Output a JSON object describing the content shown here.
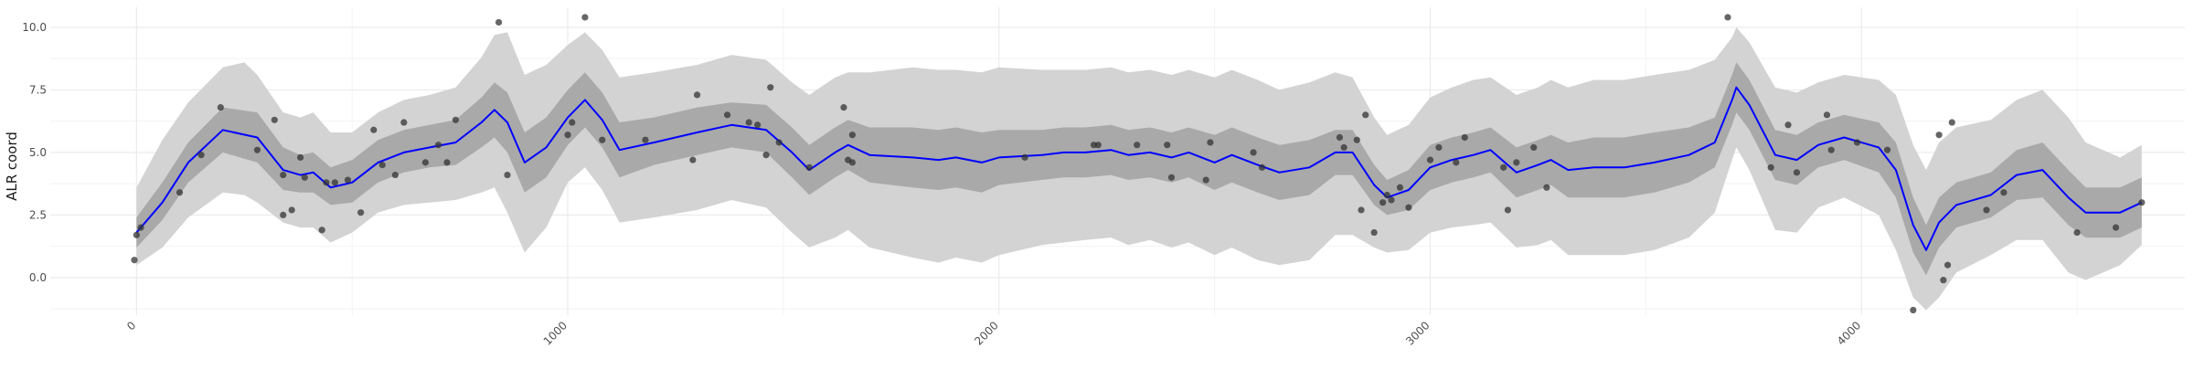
{
  "chart_data": {
    "type": "line",
    "title": "",
    "xlabel": "",
    "ylabel": "ALR coord",
    "xlim": [
      -200,
      4750
    ],
    "ylim": [
      -1.5,
      10.8
    ],
    "grid": true,
    "xticks": [
      0,
      1000,
      2000,
      3000,
      4000
    ],
    "yticks": [
      0.0,
      2.5,
      5.0,
      7.5,
      10.0
    ],
    "xtick_labels": [
      "0",
      "1000",
      "2000",
      "3000",
      "4000"
    ],
    "ytick_labels": [
      "0.0",
      "2.5",
      "5.0",
      "7.5",
      "10.0"
    ],
    "colors": {
      "mean_line": "#0000ff",
      "inner_band": "#a9a9a9",
      "outer_band": "#d3d3d3",
      "points": "#333333",
      "grid": "#ebebeb"
    },
    "mean": [
      [
        0,
        1.8
      ],
      [
        60,
        3.0
      ],
      [
        120,
        4.6
      ],
      [
        200,
        5.9
      ],
      [
        280,
        5.6
      ],
      [
        340,
        4.3
      ],
      [
        380,
        4.1
      ],
      [
        410,
        4.2
      ],
      [
        450,
        3.6
      ],
      [
        500,
        3.8
      ],
      [
        560,
        4.6
      ],
      [
        620,
        5.0
      ],
      [
        680,
        5.2
      ],
      [
        740,
        5.4
      ],
      [
        800,
        6.2
      ],
      [
        830,
        6.7
      ],
      [
        860,
        6.2
      ],
      [
        900,
        4.6
      ],
      [
        950,
        5.2
      ],
      [
        1000,
        6.4
      ],
      [
        1040,
        7.1
      ],
      [
        1080,
        6.3
      ],
      [
        1120,
        5.1
      ],
      [
        1200,
        5.4
      ],
      [
        1300,
        5.8
      ],
      [
        1380,
        6.1
      ],
      [
        1460,
        5.9
      ],
      [
        1520,
        5.0
      ],
      [
        1560,
        4.3
      ],
      [
        1620,
        5.0
      ],
      [
        1650,
        5.3
      ],
      [
        1700,
        4.9
      ],
      [
        1800,
        4.8
      ],
      [
        1860,
        4.7
      ],
      [
        1900,
        4.8
      ],
      [
        1960,
        4.6
      ],
      [
        2000,
        4.8
      ],
      [
        2100,
        4.9
      ],
      [
        2150,
        5.0
      ],
      [
        2200,
        5.0
      ],
      [
        2260,
        5.1
      ],
      [
        2300,
        4.9
      ],
      [
        2350,
        5.0
      ],
      [
        2400,
        4.8
      ],
      [
        2440,
        5.0
      ],
      [
        2500,
        4.6
      ],
      [
        2540,
        4.9
      ],
      [
        2600,
        4.5
      ],
      [
        2650,
        4.2
      ],
      [
        2720,
        4.4
      ],
      [
        2780,
        5.0
      ],
      [
        2820,
        5.0
      ],
      [
        2870,
        3.7
      ],
      [
        2900,
        3.2
      ],
      [
        2950,
        3.5
      ],
      [
        3000,
        4.4
      ],
      [
        3050,
        4.7
      ],
      [
        3100,
        4.9
      ],
      [
        3140,
        5.1
      ],
      [
        3200,
        4.2
      ],
      [
        3250,
        4.5
      ],
      [
        3280,
        4.7
      ],
      [
        3320,
        4.3
      ],
      [
        3380,
        4.4
      ],
      [
        3450,
        4.4
      ],
      [
        3520,
        4.6
      ],
      [
        3600,
        4.9
      ],
      [
        3660,
        5.4
      ],
      [
        3700,
        7.1
      ],
      [
        3710,
        7.6
      ],
      [
        3740,
        6.9
      ],
      [
        3800,
        4.9
      ],
      [
        3850,
        4.7
      ],
      [
        3900,
        5.3
      ],
      [
        3960,
        5.6
      ],
      [
        4040,
        5.2
      ],
      [
        4080,
        4.3
      ],
      [
        4120,
        2.1
      ],
      [
        4150,
        1.1
      ],
      [
        4180,
        2.2
      ],
      [
        4220,
        2.9
      ],
      [
        4300,
        3.3
      ],
      [
        4360,
        4.1
      ],
      [
        4420,
        4.3
      ],
      [
        4480,
        3.2
      ],
      [
        4520,
        2.6
      ],
      [
        4600,
        2.6
      ],
      [
        4650,
        3.0
      ]
    ],
    "inner_band": [
      [
        0,
        1.2,
        2.4
      ],
      [
        60,
        2.3,
        3.8
      ],
      [
        120,
        3.8,
        5.4
      ],
      [
        200,
        5.0,
        6.8
      ],
      [
        280,
        4.6,
        6.6
      ],
      [
        340,
        3.5,
        5.2
      ],
      [
        380,
        3.4,
        4.9
      ],
      [
        410,
        3.4,
        5.0
      ],
      [
        450,
        2.9,
        4.4
      ],
      [
        500,
        3.0,
        4.7
      ],
      [
        560,
        3.8,
        5.5
      ],
      [
        620,
        4.2,
        5.9
      ],
      [
        680,
        4.4,
        6.1
      ],
      [
        740,
        4.5,
        6.3
      ],
      [
        800,
        5.2,
        7.2
      ],
      [
        830,
        5.6,
        7.8
      ],
      [
        860,
        5.0,
        7.4
      ],
      [
        900,
        3.4,
        5.8
      ],
      [
        950,
        4.0,
        6.4
      ],
      [
        1000,
        5.3,
        7.5
      ],
      [
        1040,
        6.0,
        8.2
      ],
      [
        1080,
        5.2,
        7.4
      ],
      [
        1120,
        4.0,
        6.2
      ],
      [
        1200,
        4.5,
        6.4
      ],
      [
        1300,
        4.9,
        6.8
      ],
      [
        1380,
        5.2,
        7.0
      ],
      [
        1460,
        5.0,
        6.9
      ],
      [
        1520,
        4.0,
        6.0
      ],
      [
        1560,
        3.3,
        5.3
      ],
      [
        1620,
        4.0,
        6.0
      ],
      [
        1650,
        4.3,
        6.3
      ],
      [
        1700,
        3.8,
        6.0
      ],
      [
        1800,
        3.6,
        6.0
      ],
      [
        1860,
        3.5,
        5.9
      ],
      [
        1900,
        3.6,
        6.0
      ],
      [
        1960,
        3.4,
        5.8
      ],
      [
        2000,
        3.7,
        5.9
      ],
      [
        2100,
        3.9,
        5.9
      ],
      [
        2150,
        4.0,
        6.0
      ],
      [
        2200,
        4.0,
        6.0
      ],
      [
        2260,
        4.1,
        6.1
      ],
      [
        2300,
        3.9,
        5.9
      ],
      [
        2350,
        4.0,
        6.0
      ],
      [
        2400,
        3.8,
        5.8
      ],
      [
        2440,
        4.0,
        6.0
      ],
      [
        2500,
        3.5,
        5.7
      ],
      [
        2540,
        3.8,
        6.0
      ],
      [
        2600,
        3.4,
        5.6
      ],
      [
        2650,
        3.1,
        5.3
      ],
      [
        2720,
        3.3,
        5.5
      ],
      [
        2780,
        4.1,
        5.9
      ],
      [
        2820,
        4.1,
        5.9
      ],
      [
        2870,
        2.9,
        4.5
      ],
      [
        2900,
        2.5,
        3.9
      ],
      [
        2950,
        2.7,
        4.3
      ],
      [
        3000,
        3.5,
        5.3
      ],
      [
        3050,
        3.8,
        5.6
      ],
      [
        3100,
        4.0,
        5.8
      ],
      [
        3140,
        4.2,
        6.0
      ],
      [
        3200,
        3.2,
        5.2
      ],
      [
        3250,
        3.5,
        5.5
      ],
      [
        3280,
        3.7,
        5.7
      ],
      [
        3320,
        3.2,
        5.4
      ],
      [
        3380,
        3.2,
        5.6
      ],
      [
        3450,
        3.2,
        5.6
      ],
      [
        3520,
        3.4,
        5.8
      ],
      [
        3600,
        3.8,
        6.0
      ],
      [
        3660,
        4.4,
        6.4
      ],
      [
        3700,
        6.1,
        8.1
      ],
      [
        3710,
        6.6,
        8.6
      ],
      [
        3740,
        5.9,
        7.9
      ],
      [
        3800,
        3.9,
        5.9
      ],
      [
        3850,
        3.7,
        5.7
      ],
      [
        3900,
        4.4,
        6.2
      ],
      [
        3960,
        4.7,
        6.5
      ],
      [
        4040,
        4.2,
        6.2
      ],
      [
        4080,
        3.2,
        5.4
      ],
      [
        4120,
        1.0,
        3.2
      ],
      [
        4150,
        0.1,
        2.1
      ],
      [
        4180,
        1.2,
        3.2
      ],
      [
        4220,
        2.0,
        3.8
      ],
      [
        4300,
        2.4,
        4.2
      ],
      [
        4360,
        3.1,
        5.1
      ],
      [
        4420,
        3.2,
        5.4
      ],
      [
        4480,
        2.1,
        4.3
      ],
      [
        4520,
        1.6,
        3.6
      ],
      [
        4600,
        1.6,
        3.6
      ],
      [
        4650,
        2.0,
        4.0
      ]
    ],
    "outer_band": [
      [
        0,
        0.5,
        3.6
      ],
      [
        60,
        1.2,
        5.5
      ],
      [
        120,
        2.4,
        7.0
      ],
      [
        200,
        3.4,
        8.4
      ],
      [
        250,
        3.3,
        8.6
      ],
      [
        280,
        3.0,
        8.1
      ],
      [
        340,
        2.2,
        6.6
      ],
      [
        380,
        2.0,
        6.4
      ],
      [
        410,
        2.0,
        6.6
      ],
      [
        450,
        1.4,
        5.8
      ],
      [
        500,
        1.8,
        5.8
      ],
      [
        560,
        2.6,
        6.6
      ],
      [
        620,
        2.9,
        7.1
      ],
      [
        680,
        3.0,
        7.3
      ],
      [
        740,
        3.1,
        7.6
      ],
      [
        800,
        3.4,
        8.8
      ],
      [
        830,
        3.6,
        9.7
      ],
      [
        860,
        2.6,
        9.8
      ],
      [
        900,
        1.0,
        8.1
      ],
      [
        950,
        2.0,
        8.5
      ],
      [
        1000,
        3.8,
        9.3
      ],
      [
        1040,
        4.4,
        9.8
      ],
      [
        1080,
        3.5,
        9.1
      ],
      [
        1120,
        2.2,
        8.0
      ],
      [
        1200,
        2.4,
        8.2
      ],
      [
        1300,
        2.7,
        8.5
      ],
      [
        1380,
        3.1,
        8.9
      ],
      [
        1460,
        2.8,
        8.7
      ],
      [
        1520,
        1.8,
        7.8
      ],
      [
        1560,
        1.2,
        7.3
      ],
      [
        1620,
        1.6,
        8.0
      ],
      [
        1650,
        1.9,
        8.2
      ],
      [
        1700,
        1.2,
        8.2
      ],
      [
        1800,
        0.8,
        8.4
      ],
      [
        1860,
        0.6,
        8.3
      ],
      [
        1900,
        0.8,
        8.3
      ],
      [
        1960,
        0.6,
        8.2
      ],
      [
        2000,
        0.9,
        8.4
      ],
      [
        2100,
        1.3,
        8.3
      ],
      [
        2150,
        1.4,
        8.3
      ],
      [
        2200,
        1.5,
        8.3
      ],
      [
        2260,
        1.6,
        8.4
      ],
      [
        2300,
        1.3,
        8.2
      ],
      [
        2350,
        1.5,
        8.3
      ],
      [
        2400,
        1.2,
        8.1
      ],
      [
        2440,
        1.4,
        8.3
      ],
      [
        2500,
        0.9,
        8.0
      ],
      [
        2540,
        1.2,
        8.3
      ],
      [
        2600,
        0.7,
        7.9
      ],
      [
        2650,
        0.5,
        7.5
      ],
      [
        2720,
        0.7,
        7.8
      ],
      [
        2780,
        1.7,
        8.2
      ],
      [
        2820,
        1.7,
        8.0
      ],
      [
        2870,
        1.2,
        6.4
      ],
      [
        2900,
        1.0,
        5.7
      ],
      [
        2950,
        1.1,
        6.1
      ],
      [
        3000,
        1.8,
        7.2
      ],
      [
        3050,
        2.0,
        7.6
      ],
      [
        3100,
        2.1,
        7.9
      ],
      [
        3140,
        2.2,
        8.0
      ],
      [
        3200,
        1.2,
        7.3
      ],
      [
        3250,
        1.3,
        7.6
      ],
      [
        3280,
        1.5,
        7.9
      ],
      [
        3320,
        0.9,
        7.6
      ],
      [
        3380,
        0.9,
        7.9
      ],
      [
        3450,
        0.9,
        7.9
      ],
      [
        3520,
        1.1,
        8.1
      ],
      [
        3600,
        1.6,
        8.3
      ],
      [
        3660,
        2.6,
        8.7
      ],
      [
        3700,
        4.7,
        9.6
      ],
      [
        3710,
        5.2,
        10.0
      ],
      [
        3740,
        4.3,
        9.4
      ],
      [
        3800,
        1.9,
        7.6
      ],
      [
        3850,
        1.8,
        7.4
      ],
      [
        3900,
        2.8,
        7.8
      ],
      [
        3960,
        3.2,
        8.1
      ],
      [
        4040,
        2.5,
        7.9
      ],
      [
        4080,
        1.1,
        7.3
      ],
      [
        4120,
        -0.8,
        5.3
      ],
      [
        4150,
        -1.3,
        4.3
      ],
      [
        4180,
        -0.8,
        5.4
      ],
      [
        4220,
        0.2,
        6.0
      ],
      [
        4300,
        0.9,
        6.3
      ],
      [
        4360,
        1.5,
        7.1
      ],
      [
        4420,
        1.5,
        7.5
      ],
      [
        4480,
        0.2,
        6.4
      ],
      [
        4520,
        -0.1,
        5.4
      ],
      [
        4600,
        0.5,
        4.8
      ],
      [
        4650,
        1.3,
        5.3
      ]
    ],
    "points": [
      [
        -5,
        0.7
      ],
      [
        0,
        1.7
      ],
      [
        10,
        2.0
      ],
      [
        100,
        3.4
      ],
      [
        150,
        4.9
      ],
      [
        195,
        6.8
      ],
      [
        320,
        6.3
      ],
      [
        280,
        5.1
      ],
      [
        340,
        2.5
      ],
      [
        360,
        2.7
      ],
      [
        340,
        4.1
      ],
      [
        380,
        4.8
      ],
      [
        390,
        4.0
      ],
      [
        430,
        1.9
      ],
      [
        440,
        3.8
      ],
      [
        460,
        3.8
      ],
      [
        490,
        3.9
      ],
      [
        520,
        2.6
      ],
      [
        550,
        5.9
      ],
      [
        570,
        4.5
      ],
      [
        600,
        4.1
      ],
      [
        620,
        6.2
      ],
      [
        670,
        4.6
      ],
      [
        700,
        5.3
      ],
      [
        720,
        4.6
      ],
      [
        740,
        6.3
      ],
      [
        840,
        10.2
      ],
      [
        860,
        4.1
      ],
      [
        1000,
        5.7
      ],
      [
        1010,
        6.2
      ],
      [
        1040,
        10.4
      ],
      [
        1080,
        5.5
      ],
      [
        1180,
        5.5
      ],
      [
        1290,
        4.7
      ],
      [
        1300,
        7.3
      ],
      [
        1370,
        6.5
      ],
      [
        1420,
        6.2
      ],
      [
        1440,
        6.1
      ],
      [
        1460,
        4.9
      ],
      [
        1470,
        7.6
      ],
      [
        1490,
        5.4
      ],
      [
        1560,
        4.4
      ],
      [
        1640,
        6.8
      ],
      [
        1650,
        4.7
      ],
      [
        1660,
        4.6
      ],
      [
        1660,
        5.7
      ],
      [
        2060,
        4.8
      ],
      [
        2220,
        5.3
      ],
      [
        2230,
        5.3
      ],
      [
        2320,
        5.3
      ],
      [
        2390,
        5.3
      ],
      [
        2400,
        4.0
      ],
      [
        2480,
        3.9
      ],
      [
        2490,
        5.4
      ],
      [
        2590,
        5.0
      ],
      [
        2610,
        4.4
      ],
      [
        2790,
        5.6
      ],
      [
        2800,
        5.2
      ],
      [
        2830,
        5.5
      ],
      [
        2840,
        2.7
      ],
      [
        2850,
        6.5
      ],
      [
        2870,
        1.8
      ],
      [
        2890,
        3.0
      ],
      [
        2900,
        3.3
      ],
      [
        2910,
        3.1
      ],
      [
        2930,
        3.6
      ],
      [
        2950,
        2.8
      ],
      [
        3000,
        4.7
      ],
      [
        3020,
        5.2
      ],
      [
        3060,
        4.6
      ],
      [
        3080,
        5.6
      ],
      [
        3170,
        4.4
      ],
      [
        3180,
        2.7
      ],
      [
        3200,
        4.6
      ],
      [
        3240,
        5.2
      ],
      [
        3270,
        3.6
      ],
      [
        3690,
        10.4
      ],
      [
        3790,
        4.4
      ],
      [
        3830,
        6.1
      ],
      [
        3850,
        4.2
      ],
      [
        3920,
        6.5
      ],
      [
        3930,
        5.1
      ],
      [
        3990,
        5.4
      ],
      [
        4060,
        5.1
      ],
      [
        4120,
        -1.3
      ],
      [
        4180,
        5.7
      ],
      [
        4190,
        -0.1
      ],
      [
        4200,
        0.5
      ],
      [
        4210,
        6.2
      ],
      [
        4290,
        2.7
      ],
      [
        4330,
        3.4
      ],
      [
        4500,
        1.8
      ],
      [
        4590,
        2.0
      ],
      [
        4650,
        3.0
      ]
    ]
  }
}
